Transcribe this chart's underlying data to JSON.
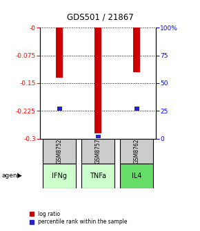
{
  "title": "GDS501 / 21867",
  "samples": [
    "GSM8752",
    "GSM8757",
    "GSM8762"
  ],
  "agents": [
    "IFNg",
    "TNFa",
    "IL4"
  ],
  "log_ratios": [
    -0.135,
    -0.285,
    -0.12
  ],
  "percentiles": [
    27,
    2,
    27
  ],
  "ylim_left": [
    -0.3,
    0
  ],
  "ylim_right": [
    0,
    100
  ],
  "yticks_left": [
    -0.3,
    -0.225,
    -0.15,
    -0.075,
    0
  ],
  "ytick_labels_left": [
    "-0.3",
    "-0.225",
    "-0.15",
    "-0.075",
    "-0"
  ],
  "yticks_right": [
    0,
    25,
    50,
    75,
    100
  ],
  "ytick_labels_right": [
    "0",
    "25",
    "50",
    "75",
    "100%"
  ],
  "bar_color_log": "#cc0000",
  "bar_color_pct": "#2222cc",
  "sample_box_color": "#cccccc",
  "agent_colors": [
    "#ccffcc",
    "#ccffcc",
    "#66dd66"
  ],
  "legend_log": "log ratio",
  "legend_pct": "percentile rank within the sample",
  "agent_label": "agent"
}
